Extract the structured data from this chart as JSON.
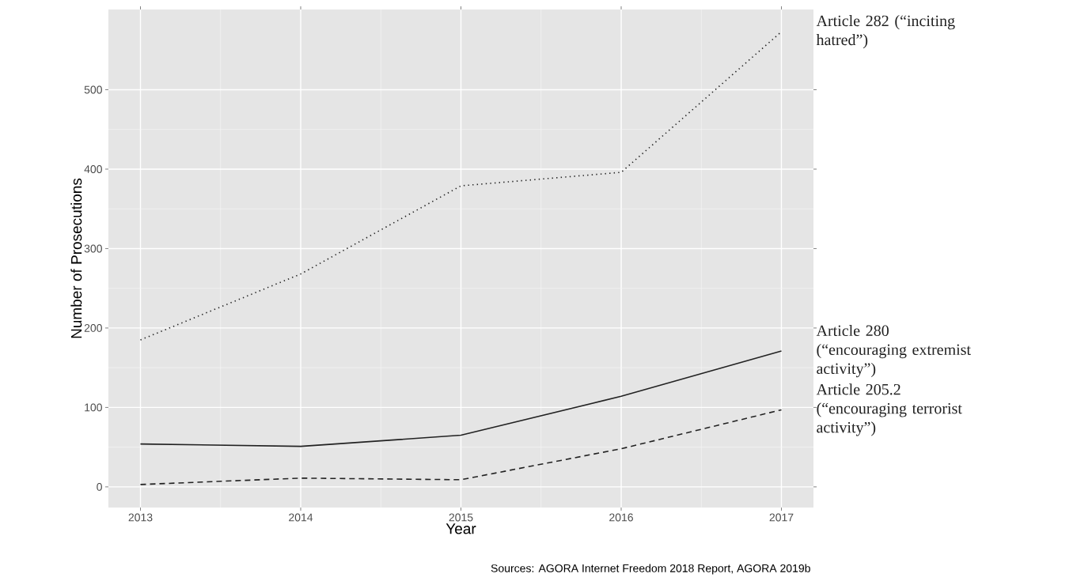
{
  "chart_data": {
    "type": "line",
    "xlabel": "Year",
    "ylabel": "Number of Prosecutions",
    "annotations": [
      "Sources: AGORA Internet Freedom 2018 Report, AGORA 2019b"
    ],
    "x": [
      2013,
      2014,
      2015,
      2016,
      2017
    ],
    "series": [
      {
        "name": "Article 282 (“inciting hatred”)",
        "color": "#222222",
        "line_style": "dotted",
        "values": [
          185,
          268,
          379,
          396,
          573
        ]
      },
      {
        "name": "Article 280 (“encouraging extremist activity”)",
        "color": "#222222",
        "line_style": "solid",
        "values": [
          54,
          51,
          65,
          114,
          171
        ]
      },
      {
        "name": "Article 205.2 (“encouraging terrorist activity”)",
        "color": "#222222",
        "line_style": "dashed",
        "values": [
          3,
          11,
          9,
          48,
          97
        ]
      }
    ],
    "xlim": [
      2012.8,
      2017.2
    ],
    "xticks": [
      2013,
      2014,
      2015,
      2016,
      2017
    ],
    "ylim": [
      -26,
      601
    ],
    "yticks": [
      0,
      100,
      200,
      300,
      400,
      500
    ],
    "grid": true
  }
}
